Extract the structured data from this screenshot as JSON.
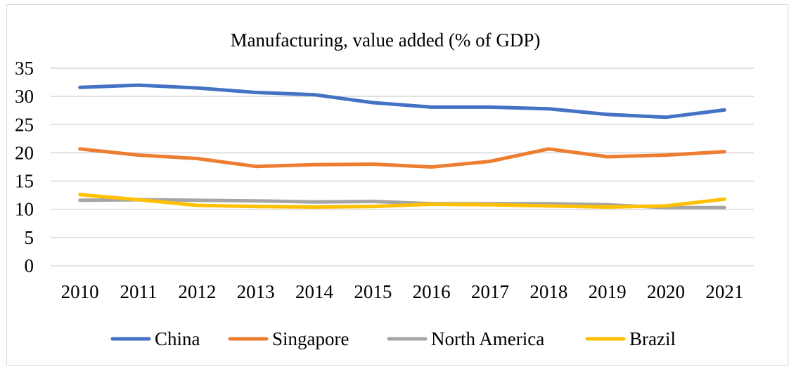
{
  "chart_data": {
    "type": "line",
    "title": "Manufacturing, value added (% of GDP)",
    "xlabel": "",
    "ylabel": "",
    "categories": [
      "2010",
      "2011",
      "2012",
      "2013",
      "2014",
      "2015",
      "2016",
      "2017",
      "2018",
      "2019",
      "2020",
      "2021"
    ],
    "ylim": [
      0,
      35
    ],
    "yticks": [
      0,
      5,
      10,
      15,
      20,
      25,
      30,
      35
    ],
    "grid": true,
    "legend_position": "bottom",
    "series": [
      {
        "name": "China",
        "color": "#4472C4",
        "values": [
          31.6,
          32.0,
          31.5,
          30.7,
          30.3,
          28.9,
          28.1,
          28.1,
          27.8,
          26.8,
          26.3,
          27.6
        ]
      },
      {
        "name": "Singapore",
        "color": "#ED7D31",
        "values": [
          20.7,
          19.6,
          19.0,
          17.6,
          17.9,
          18.0,
          17.5,
          18.5,
          20.7,
          19.3,
          19.6,
          20.2
        ]
      },
      {
        "name": "North America",
        "color": "#A5A5A5",
        "values": [
          11.6,
          11.7,
          11.6,
          11.5,
          11.3,
          11.4,
          11.0,
          11.0,
          11.0,
          10.8,
          10.3,
          10.3
        ]
      },
      {
        "name": "Brazil",
        "color": "#FFC000",
        "values": [
          12.6,
          11.7,
          10.7,
          10.5,
          10.4,
          10.5,
          10.9,
          10.8,
          10.6,
          10.4,
          10.6,
          11.8
        ]
      }
    ]
  }
}
